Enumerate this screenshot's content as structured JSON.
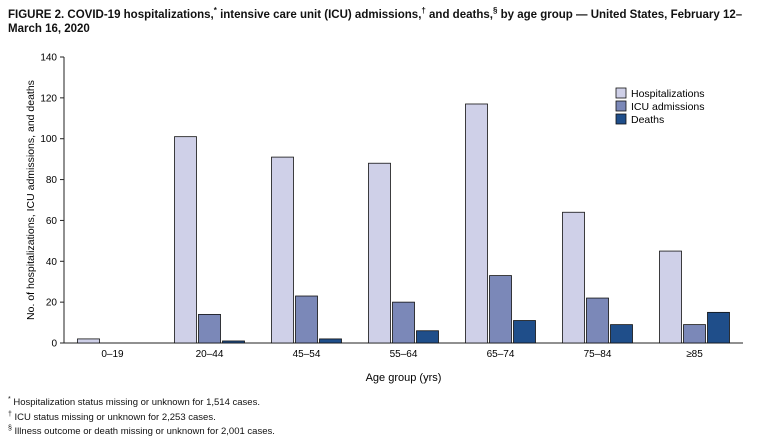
{
  "title": {
    "p1": "FIGURE 2. COVID-19 hospitalizations,",
    "m1": "*",
    "p2": " intensive care unit (ICU) admissions,",
    "m2": "†",
    "p3": " and deaths,",
    "m3": "§",
    "p4": " by age group — United States, February 12–March 16, 2020"
  },
  "chart_data": {
    "type": "bar",
    "xlabel": "Age group (yrs)",
    "ylabel": "No. of hospitalizations, ICU admissions, and deaths",
    "ylim": [
      0,
      140
    ],
    "yticks": [
      "0",
      "20",
      "40",
      "60",
      "80",
      "100",
      "120",
      "140"
    ],
    "categories": [
      "0–19",
      "20–44",
      "45–54",
      "55–64",
      "65–74",
      "75–84",
      "≥85"
    ],
    "legend_position": "top-right",
    "grid": false,
    "series": [
      {
        "name": "Hospitalizations",
        "color": "#cfd0e8",
        "values": [
          2,
          101,
          91,
          88,
          117,
          64,
          45
        ]
      },
      {
        "name": "ICU admissions",
        "color": "#7b88b8",
        "values": [
          0,
          14,
          23,
          20,
          33,
          22,
          9
        ]
      },
      {
        "name": "Deaths",
        "color": "#1f4e8a",
        "values": [
          0,
          1,
          2,
          6,
          11,
          9,
          15
        ]
      }
    ]
  },
  "footnotes": [
    {
      "marker": "*",
      "text": "Hospitalization status missing or unknown for 1,514 cases."
    },
    {
      "marker": "†",
      "text": "ICU status missing or unknown for 2,253 cases."
    },
    {
      "marker": "§",
      "text": "Illness outcome or death missing or unknown for 2,001 cases."
    }
  ]
}
